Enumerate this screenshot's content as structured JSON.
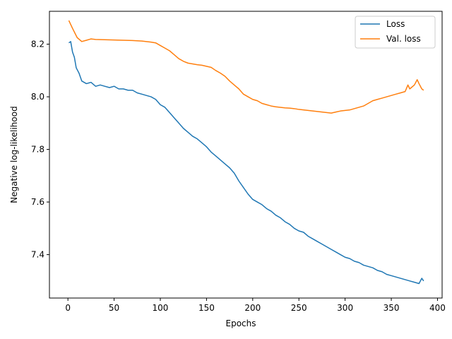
{
  "chart_data": {
    "type": "line",
    "title": "",
    "xlabel": "Epochs",
    "ylabel": "Negative log-likelihood",
    "xlim": [
      -20,
      405
    ],
    "ylim": [
      7.235,
      8.325
    ],
    "x_ticks": [
      0,
      50,
      100,
      150,
      200,
      250,
      300,
      350,
      400
    ],
    "x_tick_labels": [
      "0",
      "50",
      "100",
      "150",
      "200",
      "250",
      "300",
      "350",
      "400"
    ],
    "y_ticks": [
      7.4,
      7.6,
      7.8,
      8.0,
      8.2
    ],
    "y_tick_labels": [
      "7.4",
      "7.6",
      "7.8",
      "8.0",
      "8.2"
    ],
    "grid": false,
    "legend_position": "upper right",
    "series": [
      {
        "name": "Loss",
        "color": "#1f77b4",
        "x": [
          1,
          3,
          5,
          7,
          9,
          12,
          15,
          20,
          25,
          30,
          35,
          40,
          45,
          50,
          55,
          60,
          65,
          70,
          75,
          80,
          85,
          90,
          95,
          100,
          105,
          110,
          115,
          120,
          125,
          130,
          135,
          140,
          145,
          150,
          155,
          160,
          165,
          170,
          175,
          180,
          185,
          190,
          195,
          200,
          205,
          210,
          215,
          220,
          225,
          230,
          235,
          240,
          245,
          250,
          255,
          260,
          265,
          270,
          275,
          280,
          285,
          290,
          295,
          300,
          305,
          310,
          315,
          320,
          325,
          330,
          335,
          340,
          345,
          350,
          355,
          360,
          365,
          370,
          375,
          380,
          383,
          385
        ],
        "y": [
          8.205,
          8.21,
          8.17,
          8.15,
          8.11,
          8.09,
          8.06,
          8.05,
          8.055,
          8.04,
          8.045,
          8.04,
          8.035,
          8.04,
          8.03,
          8.03,
          8.025,
          8.025,
          8.015,
          8.01,
          8.005,
          8.0,
          7.99,
          7.97,
          7.96,
          7.94,
          7.92,
          7.9,
          7.88,
          7.865,
          7.85,
          7.84,
          7.825,
          7.81,
          7.79,
          7.775,
          7.76,
          7.745,
          7.73,
          7.71,
          7.68,
          7.655,
          7.63,
          7.61,
          7.6,
          7.59,
          7.575,
          7.565,
          7.55,
          7.54,
          7.525,
          7.515,
          7.5,
          7.49,
          7.485,
          7.47,
          7.46,
          7.45,
          7.44,
          7.43,
          7.42,
          7.41,
          7.4,
          7.39,
          7.385,
          7.375,
          7.37,
          7.36,
          7.355,
          7.35,
          7.34,
          7.335,
          7.325,
          7.32,
          7.315,
          7.31,
          7.305,
          7.3,
          7.295,
          7.29,
          7.31,
          7.3
        ]
      },
      {
        "name": "Val. loss",
        "color": "#ff7f0e",
        "x": [
          1,
          5,
          10,
          15,
          20,
          25,
          30,
          40,
          50,
          60,
          70,
          80,
          90,
          95,
          100,
          105,
          110,
          115,
          120,
          125,
          130,
          135,
          140,
          145,
          150,
          155,
          160,
          165,
          170,
          175,
          180,
          185,
          190,
          195,
          200,
          205,
          210,
          215,
          220,
          225,
          230,
          235,
          240,
          245,
          250,
          255,
          260,
          265,
          270,
          275,
          280,
          285,
          290,
          295,
          300,
          305,
          310,
          315,
          320,
          325,
          330,
          335,
          340,
          345,
          350,
          355,
          360,
          365,
          368,
          370,
          375,
          378,
          380,
          383,
          385
        ],
        "y": [
          8.29,
          8.26,
          8.225,
          8.21,
          8.215,
          8.22,
          8.218,
          8.217,
          8.216,
          8.215,
          8.214,
          8.212,
          8.208,
          8.205,
          8.195,
          8.185,
          8.175,
          8.16,
          8.145,
          8.135,
          8.128,
          8.125,
          8.122,
          8.12,
          8.116,
          8.112,
          8.1,
          8.09,
          8.078,
          8.06,
          8.045,
          8.03,
          8.01,
          8.0,
          7.99,
          7.985,
          7.975,
          7.97,
          7.965,
          7.962,
          7.96,
          7.958,
          7.957,
          7.955,
          7.952,
          7.95,
          7.948,
          7.946,
          7.944,
          7.942,
          7.94,
          7.938,
          7.942,
          7.946,
          7.948,
          7.95,
          7.955,
          7.96,
          7.965,
          7.975,
          7.985,
          7.99,
          7.995,
          8.0,
          8.005,
          8.01,
          8.015,
          8.02,
          8.045,
          8.03,
          8.045,
          8.065,
          8.05,
          8.03,
          8.025
        ]
      }
    ]
  }
}
